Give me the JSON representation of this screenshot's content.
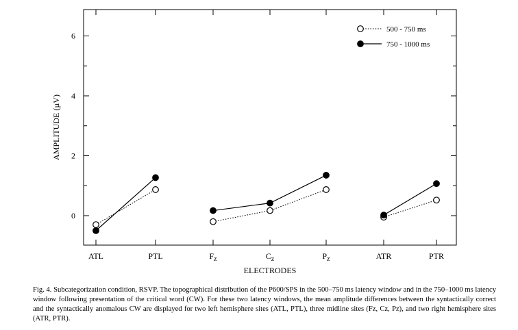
{
  "chart_data": {
    "type": "line",
    "categories": [
      "ATL",
      "PTL",
      "Fz",
      "Cz",
      "Pz",
      "ATR",
      "PTR"
    ],
    "groups": [
      [
        "ATL",
        "PTL"
      ],
      [
        "Fz",
        "Cz",
        "Pz"
      ],
      [
        "ATR",
        "PTR"
      ]
    ],
    "series": [
      {
        "name": "500 - 750 ms",
        "values": [
          -0.3,
          0.87,
          -0.2,
          0.17,
          0.87,
          -0.05,
          0.52
        ],
        "marker": "open-circle",
        "line": "dotted"
      },
      {
        "name": "750 - 1000 ms",
        "values": [
          -0.5,
          1.27,
          0.17,
          0.42,
          1.35,
          0.02,
          1.07
        ],
        "marker": "filled-circle",
        "line": "solid"
      }
    ],
    "xlabel": "ELECTRODES",
    "ylabel": "AMPLITUDE (µV)",
    "ylim": [
      -1,
      7
    ],
    "yticks": [
      0,
      2,
      4,
      6
    ],
    "legend": "top-right",
    "grid": false
  },
  "caption": {
    "text": "Fig. 4. Subcategorization condition, RSVP. The topographical distribution of the P600/SPS in the 500–750 ms latency window and in the 750–1000 ms latency window following presentation of the critical word (CW). For these two latency windows, the mean amplitude differences between the syntactically correct and the syntactically anomalous CW are displayed for two left hemisphere sites (ATL, PTL), three midline sites (Fz, Cz, Pz), and two right hemisphere sites (ATR, PTR)."
  }
}
